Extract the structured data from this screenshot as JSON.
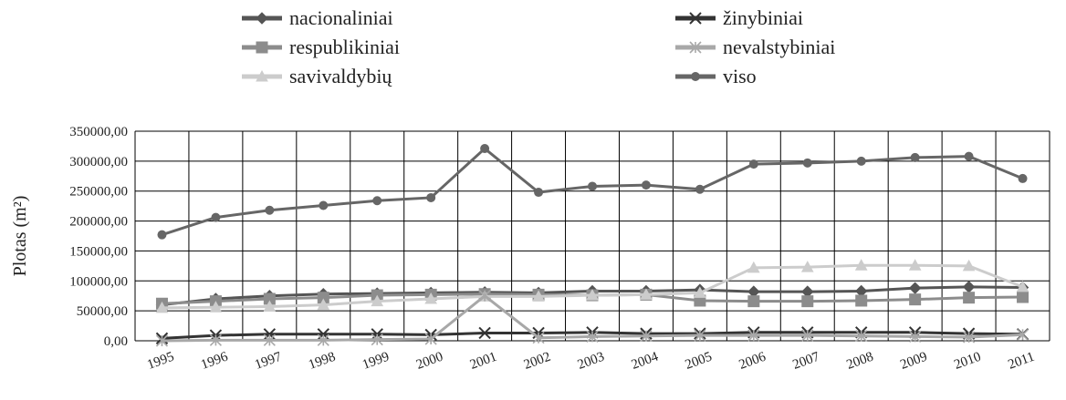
{
  "chart_data": {
    "type": "line",
    "y_label": "Plotas (m²)",
    "categories": [
      "1995",
      "1996",
      "1997",
      "1998",
      "1999",
      "2000",
      "2001",
      "2002",
      "2003",
      "2004",
      "2005",
      "2006",
      "2007",
      "2008",
      "2009",
      "2010",
      "2011"
    ],
    "ylim": [
      0,
      350000
    ],
    "yticks": [
      {
        "value": 0,
        "label": "0,00"
      },
      {
        "value": 50000,
        "label": "50000,00"
      },
      {
        "value": 100000,
        "label": "100000,00"
      },
      {
        "value": 150000,
        "label": "150000,00"
      },
      {
        "value": 200000,
        "label": "200000,00"
      },
      {
        "value": 250000,
        "label": "250000,00"
      },
      {
        "value": 300000,
        "label": "300000,00"
      },
      {
        "value": 350000,
        "label": "350000,00"
      }
    ],
    "grid": true,
    "series": [
      {
        "name": "nacionaliniai",
        "color": "#555555",
        "marker": "diamond",
        "values": [
          60000,
          70000,
          75000,
          78000,
          79000,
          80000,
          81000,
          80000,
          83000,
          83000,
          85000,
          82000,
          82000,
          83000,
          88000,
          90000,
          89000
        ]
      },
      {
        "name": "respublikiniai",
        "color": "#8c8c8c",
        "marker": "square",
        "values": [
          62000,
          66000,
          70000,
          72000,
          76000,
          77000,
          78000,
          77000,
          76000,
          77000,
          67000,
          66000,
          66000,
          67000,
          69000,
          72000,
          73000
        ]
      },
      {
        "name": "savivaldybių",
        "color": "#cccccc",
        "marker": "triangle",
        "values": [
          55000,
          56000,
          57000,
          60000,
          66000,
          70000,
          74000,
          74000,
          76000,
          77000,
          80000,
          122000,
          123000,
          126000,
          126000,
          125000,
          90000
        ]
      },
      {
        "name": "žinybiniai",
        "color": "#333333",
        "marker": "x",
        "values": [
          4000,
          9000,
          11000,
          11000,
          11000,
          10000,
          13000,
          13000,
          14000,
          12000,
          12000,
          14000,
          14000,
          14000,
          14000,
          12000,
          11000
        ]
      },
      {
        "name": "nevalstybiniai",
        "color": "#a8a8a8",
        "marker": "star",
        "values": [
          0,
          1000,
          1000,
          1000,
          2000,
          3000,
          75000,
          5000,
          7000,
          8000,
          9000,
          9000,
          9000,
          8000,
          7000,
          6000,
          10000
        ]
      },
      {
        "name": "viso",
        "color": "#666666",
        "marker": "circle",
        "values": [
          177000,
          206000,
          218000,
          226000,
          234000,
          239000,
          321000,
          248000,
          258000,
          260000,
          253000,
          295000,
          297000,
          300000,
          306000,
          308000,
          271000
        ]
      }
    ]
  }
}
